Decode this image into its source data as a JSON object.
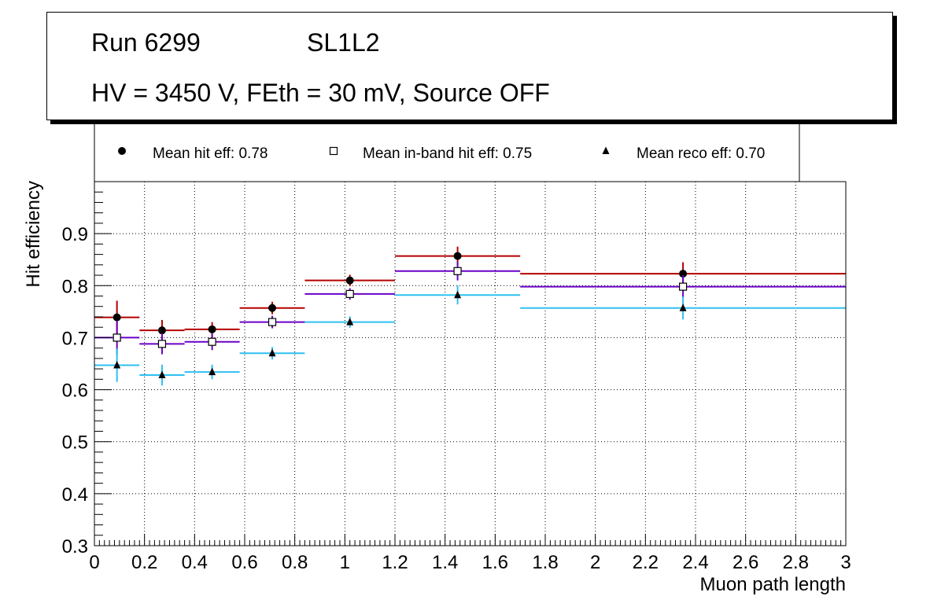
{
  "header": {
    "run": "Run 6299",
    "layer": "SL1L2",
    "conditions": "HV = 3450 V, FEth = 30 mV, Source OFF"
  },
  "colors": {
    "hit": "#b40000",
    "inband": "#6a00c8",
    "reco": "#2ec0f0",
    "marker": "#000000",
    "grid": "#000000"
  },
  "chart_data": {
    "type": "scatter",
    "xlabel": "Muon path length",
    "ylabel": "Hit efficiency",
    "xlim": [
      0,
      3
    ],
    "ylim": [
      0.3,
      1.0
    ],
    "grid": true,
    "legend_position": "top",
    "x_ticks": [
      "0",
      "0.2",
      "0.4",
      "0.6",
      "0.8",
      "1",
      "1.2",
      "1.4",
      "1.6",
      "1.8",
      "2",
      "2.2",
      "2.4",
      "2.6",
      "2.8",
      "3"
    ],
    "y_ticks": [
      "0.3",
      "0.4",
      "0.5",
      "0.6",
      "0.7",
      "0.8",
      "0.9"
    ],
    "bins": [
      {
        "lo": 0.0,
        "hi": 0.18,
        "x": 0.09
      },
      {
        "lo": 0.18,
        "hi": 0.36,
        "x": 0.27
      },
      {
        "lo": 0.36,
        "hi": 0.58,
        "x": 0.47
      },
      {
        "lo": 0.58,
        "hi": 0.84,
        "x": 0.71
      },
      {
        "lo": 0.84,
        "hi": 1.2,
        "x": 1.02
      },
      {
        "lo": 1.2,
        "hi": 1.7,
        "x": 1.45
      },
      {
        "lo": 1.7,
        "hi": 3.0,
        "x": 2.35
      }
    ],
    "series": [
      {
        "name": "Mean hit  eff: 0.78",
        "marker": "circle",
        "color_key": "hit",
        "values": [
          0.739,
          0.714,
          0.716,
          0.757,
          0.81,
          0.857,
          0.823
        ],
        "errors": [
          0.032,
          0.02,
          0.014,
          0.012,
          0.011,
          0.018,
          0.022
        ]
      },
      {
        "name": "Mean in-band hit eff: 0.75",
        "marker": "open-square",
        "color_key": "inband",
        "values": [
          0.7,
          0.688,
          0.692,
          0.73,
          0.784,
          0.828,
          0.798
        ],
        "errors": [
          0.032,
          0.02,
          0.016,
          0.012,
          0.011,
          0.018,
          0.022
        ]
      },
      {
        "name": "Mean reco eff: 0.70",
        "marker": "triangle",
        "color_key": "reco",
        "values": [
          0.647,
          0.628,
          0.634,
          0.67,
          0.73,
          0.782,
          0.757
        ],
        "errors": [
          0.032,
          0.02,
          0.014,
          0.012,
          0.011,
          0.018,
          0.022
        ]
      }
    ]
  }
}
